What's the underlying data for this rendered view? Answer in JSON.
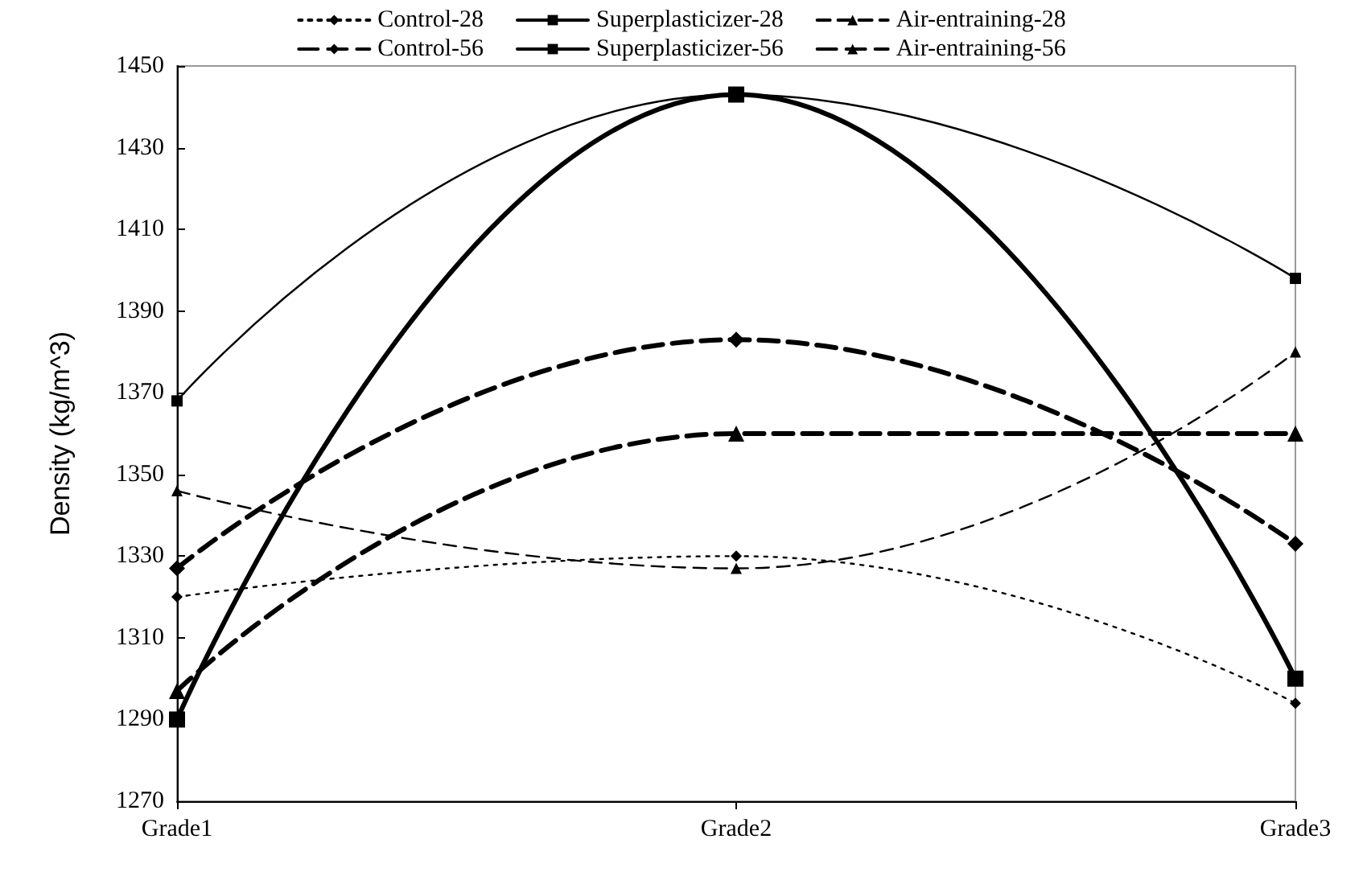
{
  "chart_data": {
    "type": "line",
    "ylabel": "Density (kg/m^3)",
    "categories": [
      "Grade1",
      "Grade2",
      "Grade3"
    ],
    "ylim": [
      1270,
      1450
    ],
    "yticks": [
      1270,
      1290,
      1310,
      1330,
      1350,
      1370,
      1390,
      1410,
      1430,
      1450
    ],
    "grid": false,
    "legend": "top",
    "series": [
      {
        "name": "Control-28",
        "color": "#000000",
        "marker": "diamond",
        "line_style": "dotted",
        "values": [
          1320,
          1330,
          1294
        ]
      },
      {
        "name": "Superplasticizer-28",
        "color": "#000000",
        "marker": "square",
        "line_style": "solid",
        "values": [
          1368,
          1443,
          1398
        ]
      },
      {
        "name": "Air-entraining-28",
        "color": "#000000",
        "marker": "triangle",
        "line_style": "dashed",
        "values": [
          1346,
          1327,
          1380
        ]
      },
      {
        "name": "Control-56",
        "color": "#000000",
        "marker": "diamond",
        "line_style": "dashed",
        "values": [
          1327,
          1383,
          1333
        ]
      },
      {
        "name": "Superplasticizer-56",
        "color": "#000000",
        "marker": "square",
        "line_style": "solid",
        "values": [
          1290,
          1443,
          1300
        ]
      },
      {
        "name": "Air-entraining-56",
        "color": "#000000",
        "marker": "triangle",
        "line_style": "dashed",
        "values": [
          1297,
          1360,
          1360
        ]
      }
    ]
  }
}
